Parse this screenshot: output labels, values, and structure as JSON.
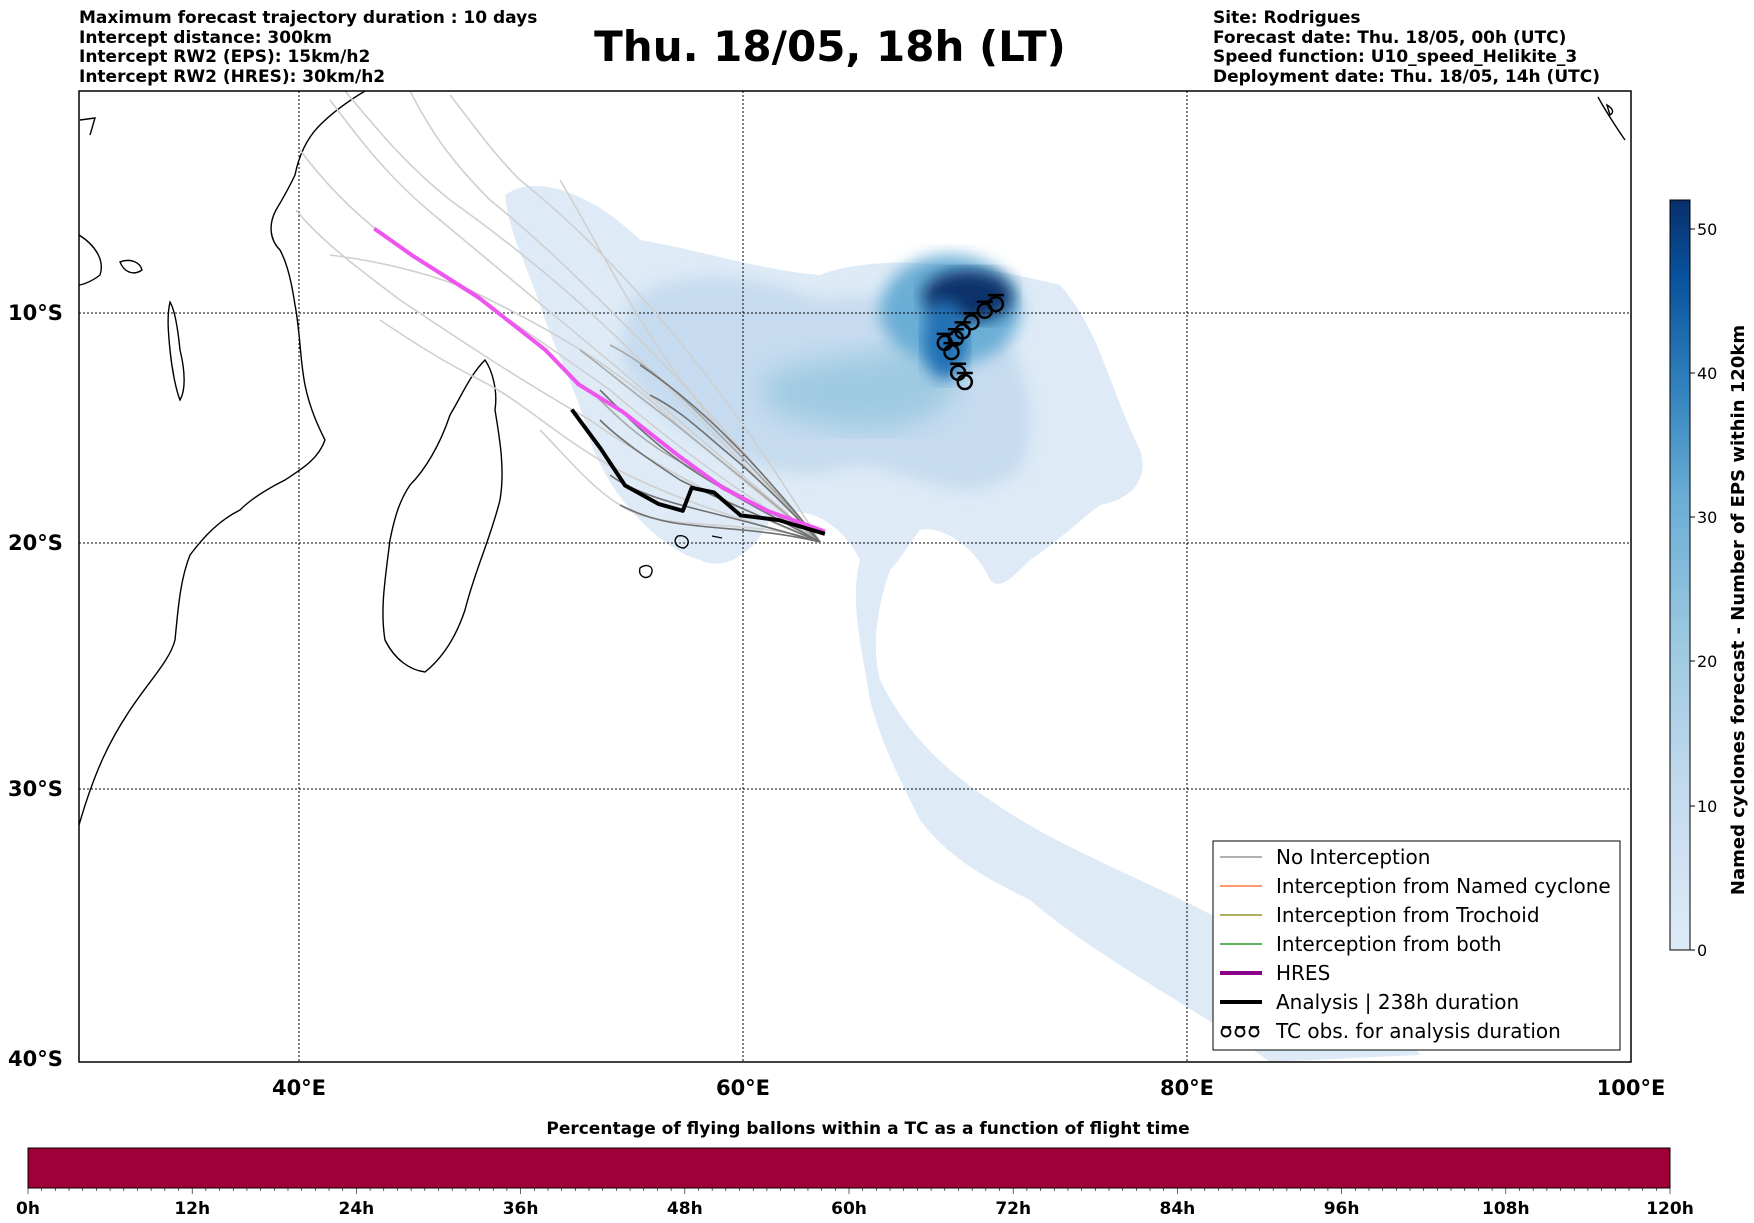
{
  "header": {
    "left_lines": [
      "Maximum forecast trajectory duration : 10 days",
      "Intercept distance: 300km",
      "Intercept RW2 (EPS):  15km/h2",
      "Intercept RW2 (HRES): 30km/h2"
    ],
    "title": "Thu. 18/05, 18h (LT)",
    "right_lines": [
      "Site: Rodrigues",
      "Forecast date: Thu. 18/05, 00h (UTC)",
      "Speed function: U10_speed_Helikite_3",
      "Deployment date: Thu. 18/05, 14h (UTC)"
    ]
  },
  "map": {
    "lat_labels": [
      "10°S",
      "20°S",
      "30°S",
      "40°S"
    ],
    "lon_labels": [
      "40°E",
      "60°E",
      "80°E",
      "100°E"
    ],
    "extent": {
      "lon_min": 30,
      "lon_max": 100,
      "lat_north": -0.4,
      "lat_south": -40
    },
    "hres_track": [
      [
        43.3,
        -6.2
      ],
      [
        45,
        -7.4
      ],
      [
        48,
        -9.3
      ],
      [
        51,
        -11.6
      ],
      [
        52.5,
        -13.1
      ],
      [
        54.5,
        -14.3
      ],
      [
        57,
        -16.2
      ],
      [
        59,
        -17.6
      ],
      [
        61,
        -18.6
      ],
      [
        63.6,
        -19.5
      ]
    ],
    "analysis_track": [
      [
        52.2,
        -14.2
      ],
      [
        53.5,
        -15.9
      ],
      [
        54.6,
        -17.5
      ],
      [
        56.1,
        -18.3
      ],
      [
        57.2,
        -18.6
      ],
      [
        57.6,
        -17.6
      ],
      [
        58.6,
        -17.8
      ],
      [
        59.8,
        -18.8
      ],
      [
        61.5,
        -19.0
      ],
      [
        63.6,
        -19.6
      ]
    ],
    "tc_obs_points": [
      [
        69,
        -11.3
      ],
      [
        69.5,
        -11.1
      ],
      [
        69.8,
        -10.8
      ],
      [
        70.2,
        -10.4
      ],
      [
        70.8,
        -9.9
      ],
      [
        71.3,
        -9.6
      ],
      [
        69.3,
        -11.7
      ],
      [
        69.6,
        -12.6
      ],
      [
        69.9,
        -13.0
      ]
    ]
  },
  "legend": {
    "items": [
      {
        "label": "No Interception",
        "color": "#808080",
        "kind": "line-thin"
      },
      {
        "label": "Interception from Named cyclone",
        "color": "#ff5a1a",
        "kind": "line-thin"
      },
      {
        "label": "Interception from Trochoid",
        "color": "#808000",
        "kind": "line-thin"
      },
      {
        "label": "Interception from both",
        "color": "#008000",
        "kind": "line-thin"
      },
      {
        "label": "HRES",
        "color": "#8b008b",
        "kind": "line-thick"
      },
      {
        "label": "Analysis | 238h duration",
        "color": "#000000",
        "kind": "line-thick"
      },
      {
        "label": "TC obs. for analysis duration",
        "color": "#000000",
        "kind": "symbols"
      }
    ]
  },
  "colorbar": {
    "label": "Named cyclones forecast - Number of EPS within 120km",
    "ticks": [
      "50",
      "40",
      "30",
      "20",
      "10",
      "0"
    ],
    "range": [
      0,
      52
    ],
    "color_low": "#deebf7",
    "color_high": "#08306b"
  },
  "percentage_bar": {
    "title": "Percentage of flying ballons within a TC as a function of flight time",
    "ticks": [
      "0h",
      "12h",
      "24h",
      "36h",
      "48h",
      "60h",
      "72h",
      "84h",
      "96h",
      "108h",
      "120h"
    ],
    "fill_color": "#a0003a"
  }
}
